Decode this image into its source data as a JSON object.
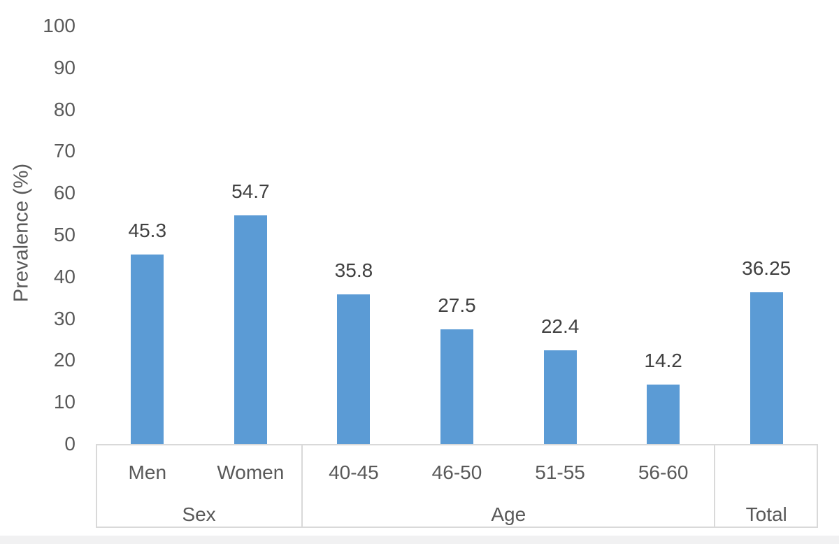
{
  "page": {
    "background_color": "#ffffff",
    "footer_strip_color": "#f1f1f2"
  },
  "chart_data": {
    "type": "bar",
    "title": "",
    "ylabel": "Prevalence (%)",
    "xlabel": "",
    "ylim": [
      0,
      100
    ],
    "ytick_step": 10,
    "ytick_labels": [
      "0",
      "10",
      "20",
      "30",
      "40",
      "50",
      "60",
      "70",
      "80",
      "90",
      "100"
    ],
    "grid": false,
    "legend": false,
    "data_labels_shown": true,
    "bar_color": "#5B9BD5",
    "axis_line_color": "#D9D9D9",
    "axis_text_color": "#595959",
    "data_label_color": "#404040",
    "categories": [
      "Men",
      "Women",
      "40-45",
      "46-50",
      "51-55",
      "56-60",
      ""
    ],
    "values": [
      45.3,
      54.7,
      35.8,
      27.5,
      22.4,
      14.2,
      36.25
    ],
    "data_labels": [
      "45.3",
      "54.7",
      "35.8",
      "27.5",
      "22.4",
      "14.2",
      "36.25"
    ],
    "category_groups": [
      {
        "label": "Sex",
        "span": 2
      },
      {
        "label": "Age",
        "span": 4
      },
      {
        "label": "Total",
        "span": 1
      }
    ]
  }
}
